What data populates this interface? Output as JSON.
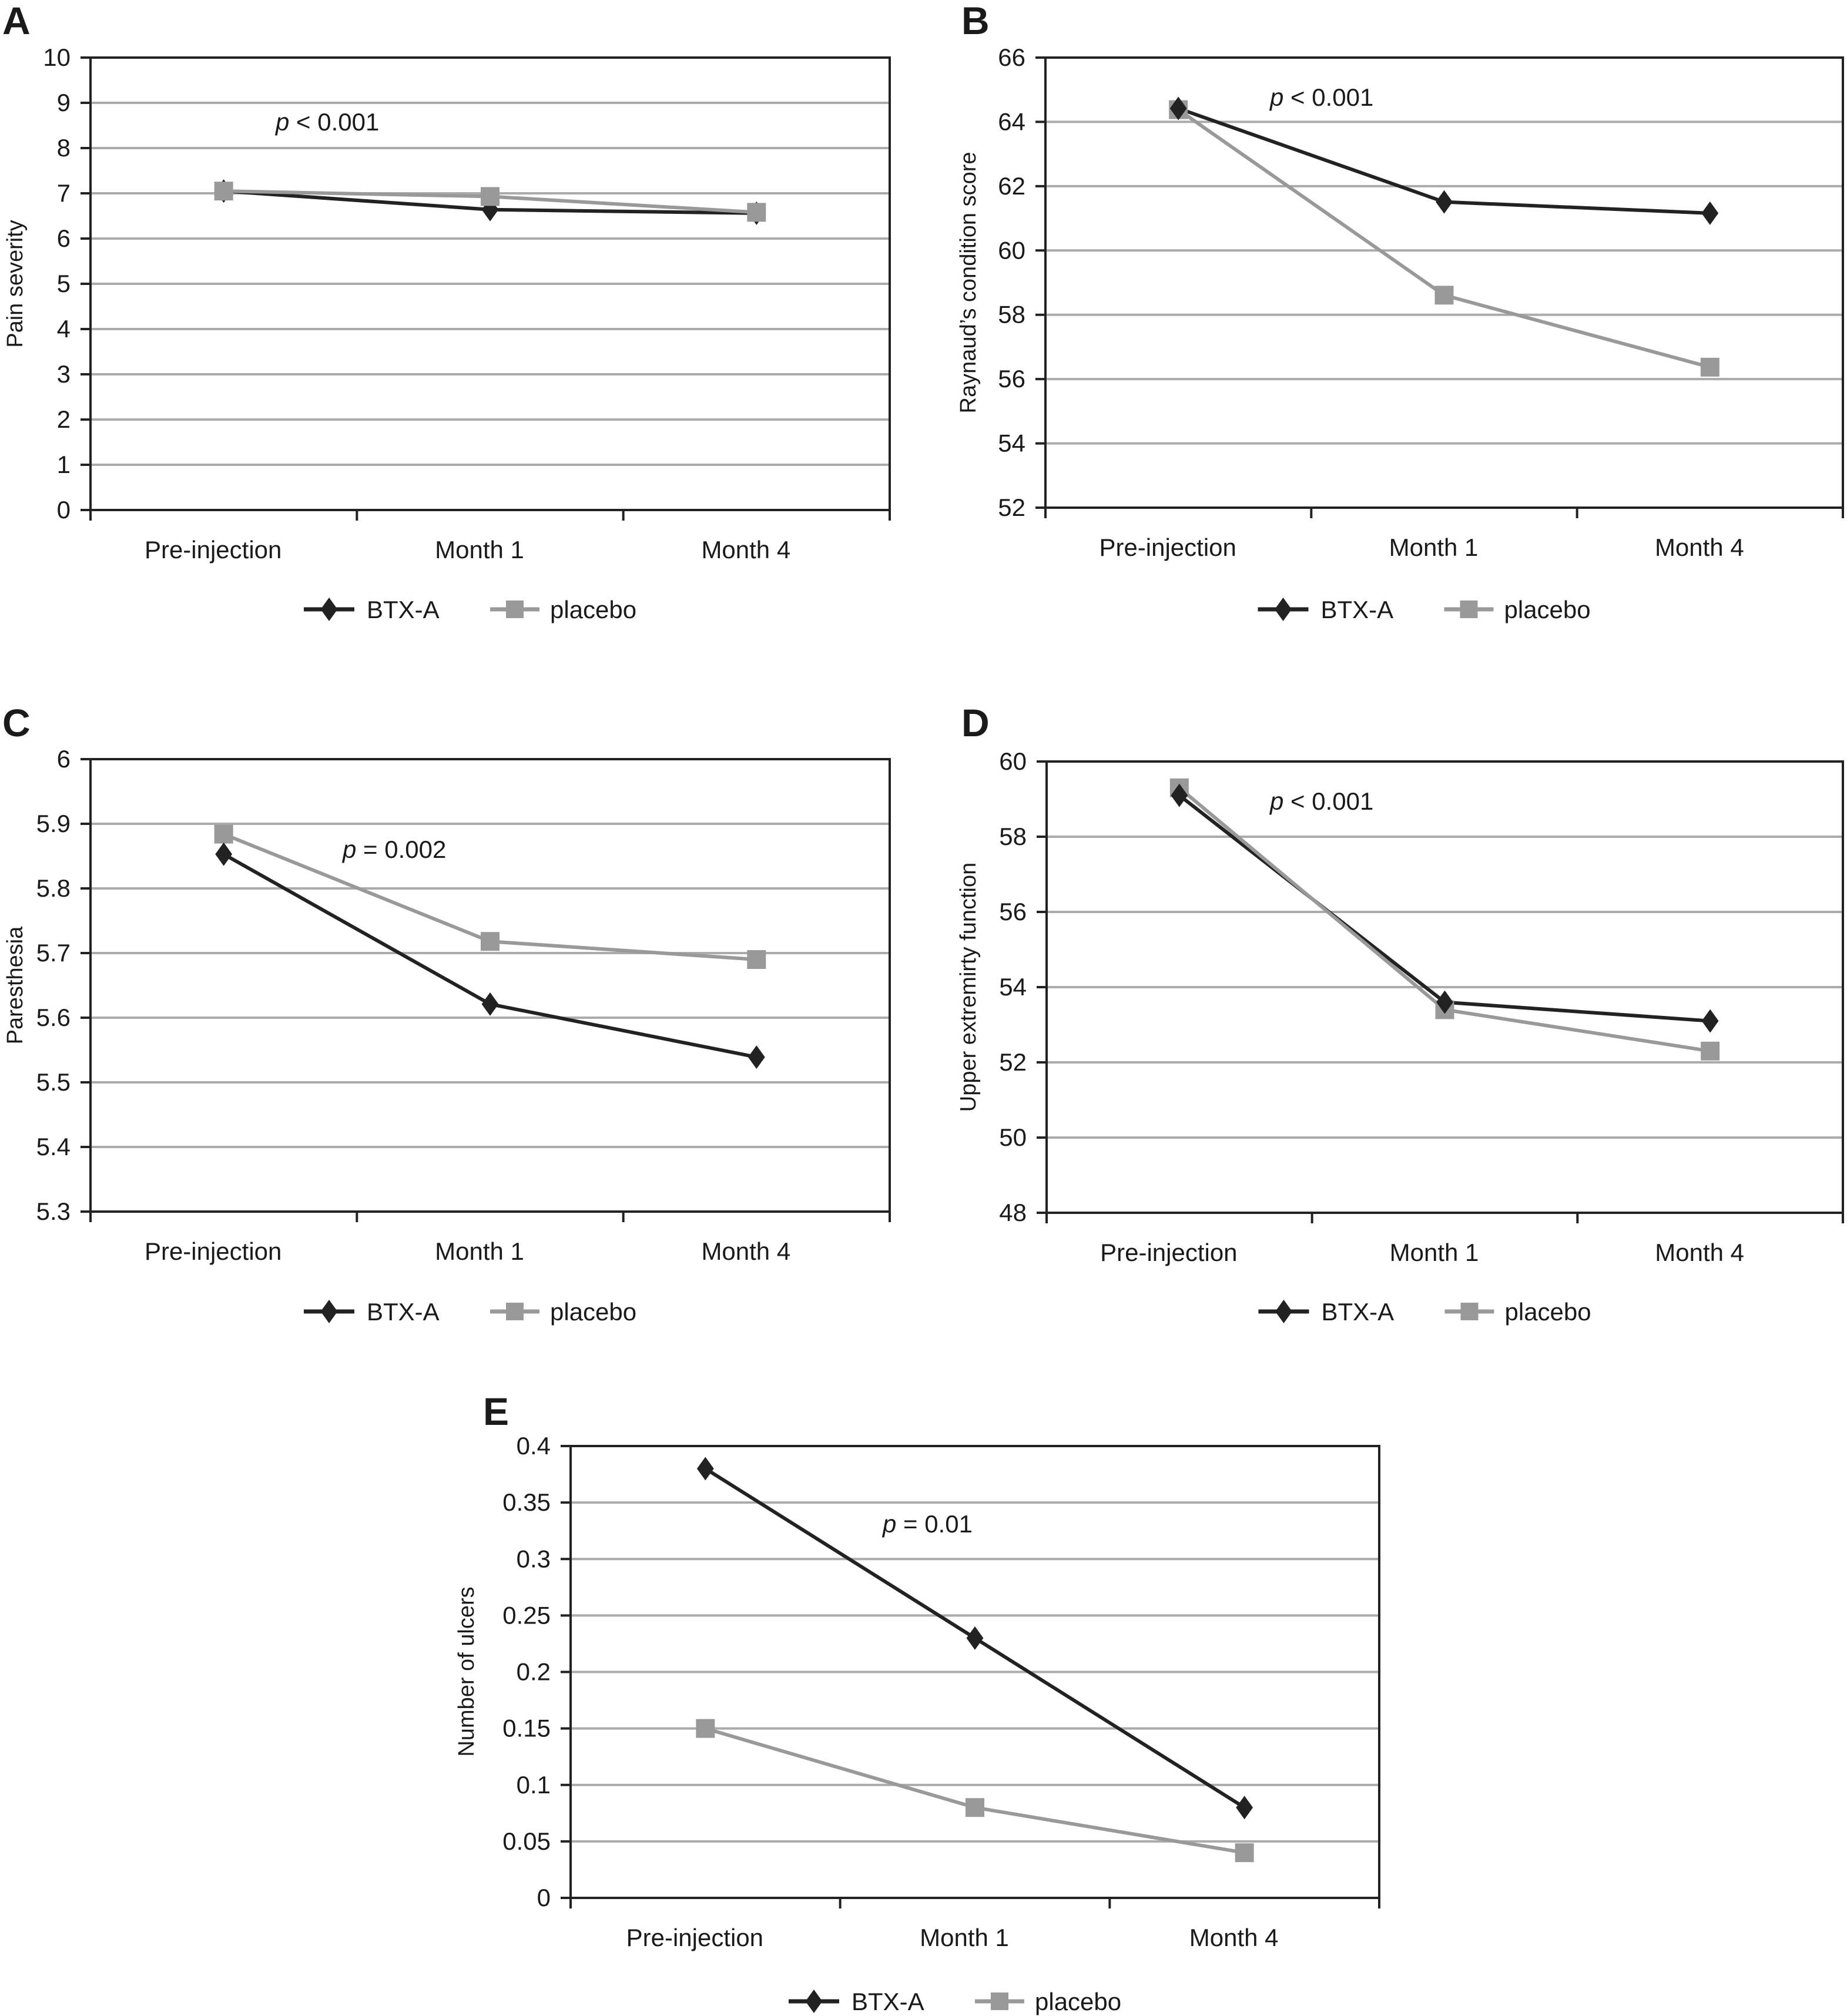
{
  "chart_data": [
    {
      "panel": "A",
      "type": "line",
      "title": "",
      "xlabel": "",
      "ylabel": "Pain severity",
      "categories": [
        "Pre-injection",
        "Month 1",
        "Month 4"
      ],
      "ylim": [
        0,
        10
      ],
      "yticks": [
        0,
        1,
        2,
        3,
        4,
        5,
        6,
        7,
        8,
        9,
        10
      ],
      "ytick_labels": [
        "0",
        "1",
        "2",
        "3",
        "4",
        "5",
        "6",
        "7",
        "8",
        "9",
        "10"
      ],
      "grid": true,
      "annotation": {
        "p_symbol": "p",
        "text": " < 0.001"
      },
      "legend": {
        "placement": "bottom",
        "entries": [
          "BTX-A",
          "placebo"
        ]
      },
      "series": [
        {
          "name": "BTX-A",
          "marker": "diamond",
          "color": "#222222",
          "values": [
            7.05,
            6.64,
            6.56
          ]
        },
        {
          "name": "placebo",
          "marker": "square",
          "color": "#999999",
          "values": [
            7.05,
            6.93,
            6.58
          ]
        }
      ]
    },
    {
      "panel": "B",
      "type": "line",
      "title": "",
      "xlabel": "",
      "ylabel": "Raynaud’s condition score",
      "categories": [
        "Pre-injection",
        "Month 1",
        "Month 4"
      ],
      "ylim": [
        52,
        66
      ],
      "yticks": [
        52,
        54,
        56,
        58,
        60,
        62,
        64,
        66
      ],
      "ytick_labels": [
        "52",
        "54",
        "56",
        "58",
        "60",
        "62",
        "64",
        "66"
      ],
      "grid": true,
      "annotation": {
        "p_symbol": "p",
        "text": " < 0.001"
      },
      "legend": {
        "placement": "bottom",
        "entries": [
          "BTX-A",
          "placebo"
        ]
      },
      "series": [
        {
          "name": "BTX-A",
          "marker": "diamond",
          "color": "#222222",
          "values": [
            64.42,
            61.51,
            61.16
          ]
        },
        {
          "name": "placebo",
          "marker": "square",
          "color": "#999999",
          "values": [
            64.38,
            58.61,
            56.37
          ]
        }
      ]
    },
    {
      "panel": "C",
      "type": "line",
      "title": "",
      "xlabel": "",
      "ylabel": "Paresthesia",
      "categories": [
        "Pre-injection",
        "Month 1",
        "Month 4"
      ],
      "ylim": [
        5.3,
        6.0
      ],
      "yticks": [
        5.3,
        5.4,
        5.5,
        5.6,
        5.7,
        5.8,
        5.9,
        6.0
      ],
      "ytick_labels": [
        "5.3",
        "5.4",
        "5.5",
        "5.6",
        "5.7",
        "5.8",
        "5.9",
        "6"
      ],
      "grid": true,
      "annotation": {
        "p_symbol": "p",
        "text": " = 0.002"
      },
      "legend": {
        "placement": "bottom",
        "entries": [
          "BTX-A",
          "placebo"
        ]
      },
      "series": [
        {
          "name": "BTX-A",
          "marker": "diamond",
          "color": "#222222",
          "values": [
            5.853,
            5.621,
            5.539
          ]
        },
        {
          "name": "placebo",
          "marker": "square",
          "color": "#999999",
          "values": [
            5.884,
            5.718,
            5.69
          ]
        }
      ]
    },
    {
      "panel": "D",
      "type": "line",
      "title": "",
      "xlabel": "",
      "ylabel": "Upper extremirty function",
      "categories": [
        "Pre-injection",
        "Month 1",
        "Month 4"
      ],
      "ylim": [
        48,
        60
      ],
      "yticks": [
        48,
        50,
        52,
        54,
        56,
        58,
        60
      ],
      "ytick_labels": [
        "48",
        "50",
        "52",
        "54",
        "56",
        "58",
        "60"
      ],
      "grid": true,
      "annotation": {
        "p_symbol": "p",
        "text": " < 0.001"
      },
      "legend": {
        "placement": "bottom",
        "entries": [
          "BTX-A",
          "placebo"
        ]
      },
      "series": [
        {
          "name": "BTX-A",
          "marker": "diamond",
          "color": "#222222",
          "values": [
            59.1,
            53.6,
            53.1
          ]
        },
        {
          "name": "placebo",
          "marker": "square",
          "color": "#999999",
          "values": [
            59.3,
            53.4,
            52.3
          ]
        }
      ]
    },
    {
      "panel": "E",
      "type": "line",
      "title": "",
      "xlabel": "",
      "ylabel": "Number of ulcers",
      "categories": [
        "Pre-injection",
        "Month 1",
        "Month 4"
      ],
      "ylim": [
        0,
        0.4
      ],
      "yticks": [
        0,
        0.05,
        0.1,
        0.15,
        0.2,
        0.25,
        0.3,
        0.35,
        0.4
      ],
      "ytick_labels": [
        "0",
        "0.05",
        "0.1",
        "0.15",
        "0.2",
        "0.25",
        "0.3",
        "0.35",
        "0.4"
      ],
      "grid": true,
      "annotation": {
        "p_symbol": "p",
        "text": " = 0.01"
      },
      "legend": {
        "placement": "bottom",
        "entries": [
          "BTX-A",
          "placebo"
        ]
      },
      "series": [
        {
          "name": "BTX-A",
          "marker": "diamond",
          "color": "#222222",
          "values": [
            0.38,
            0.23,
            0.08
          ]
        },
        {
          "name": "placebo",
          "marker": "square",
          "color": "#999999",
          "values": [
            0.15,
            0.08,
            0.04
          ]
        }
      ]
    }
  ],
  "colors": {
    "grid": "#ababab",
    "axis": "#222222",
    "btx": "#222222",
    "placebo": "#999999"
  }
}
